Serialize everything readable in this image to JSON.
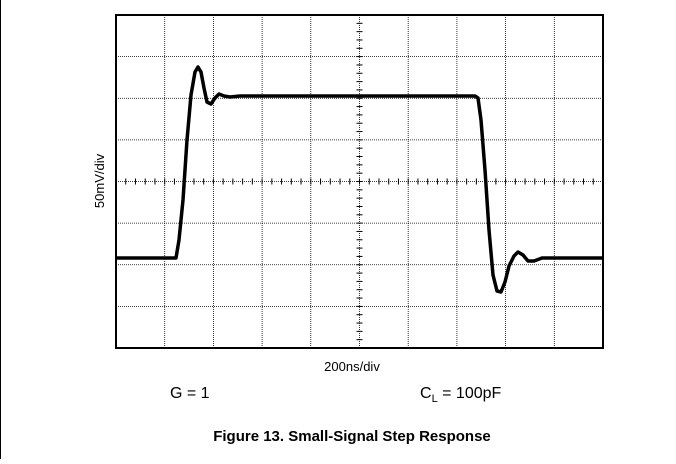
{
  "figure": {
    "y_label": "50mV/div",
    "x_label": "200ns/div",
    "condition_gain": "G = 1",
    "condition_load": {
      "symbol": "C",
      "subscript": "L",
      "rest": " = 100pF"
    },
    "caption": "Figure 13. Small-Signal Step Response"
  }
}
